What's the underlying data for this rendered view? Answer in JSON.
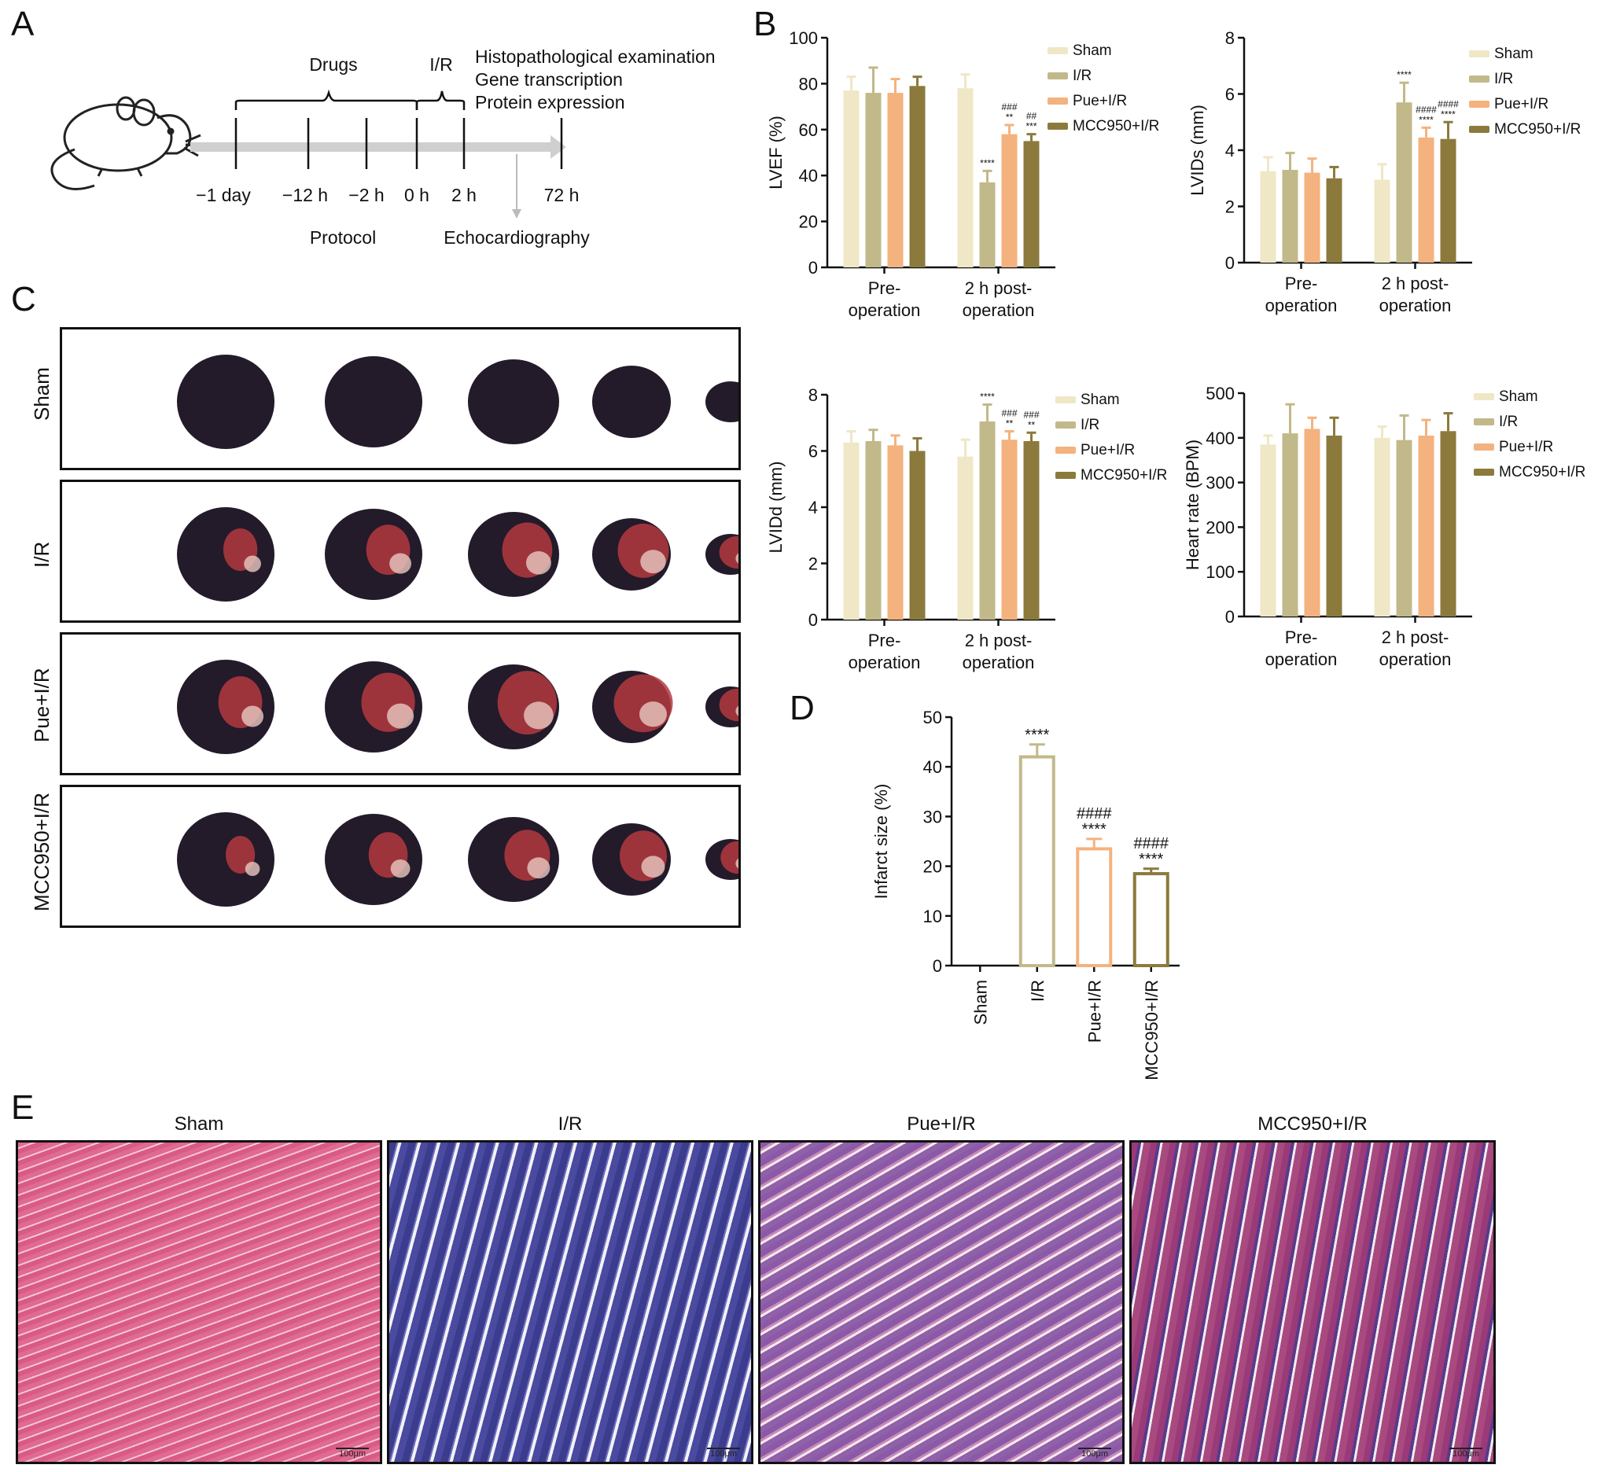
{
  "panels": {
    "a": "A",
    "b": "B",
    "c": "C",
    "d": "D",
    "e": "E"
  },
  "protocol": {
    "drugs_label": "Drugs",
    "ir_label": "I/R",
    "outcomes": [
      "Histopathological examination",
      "Gene transcription",
      "Protein expression"
    ],
    "timepoints": [
      "−1 day",
      "−12 h",
      "−2 h",
      "0 h",
      "2 h",
      "72 h"
    ],
    "protocol_label": "Protocol",
    "echo_label": "Echocardiography",
    "mouse_icon": "mouse-icon"
  },
  "colors": {
    "sham": "#efe7c6",
    "ir": "#c2b98a",
    "pue": "#f4b27e",
    "mcc": "#8b7a3c",
    "blue_histo": "#4a4aa0",
    "pink_histo": "#d44a80"
  },
  "legend": [
    "Sham",
    "I/R",
    "Pue+I/R",
    "MCC950+I/R"
  ],
  "chart_data": [
    {
      "id": "lvef",
      "type": "bar",
      "ylabel": "LVEF (%)",
      "ylim": [
        0,
        100
      ],
      "yticks": [
        0,
        20,
        40,
        60,
        80,
        100
      ],
      "groups": [
        [
          "Pre-",
          "operation"
        ],
        [
          "2 h post-",
          "operation"
        ]
      ],
      "series": [
        {
          "name": "Sham",
          "values": [
            77,
            78
          ],
          "errors": [
            6,
            6
          ],
          "marks": [
            "",
            ""
          ]
        },
        {
          "name": "I/R",
          "values": [
            76,
            37
          ],
          "errors": [
            11,
            5
          ],
          "marks": [
            "",
            "****"
          ]
        },
        {
          "name": "Pue+I/R",
          "values": [
            76,
            58
          ],
          "errors": [
            6,
            4
          ],
          "marks": [
            "",
            "###|**"
          ]
        },
        {
          "name": "MCC950+I/R",
          "values": [
            79,
            55
          ],
          "errors": [
            4,
            3
          ],
          "marks": [
            "",
            "##|***"
          ]
        }
      ],
      "legend_position": "top-right"
    },
    {
      "id": "lvids",
      "type": "bar",
      "ylabel": "LVIDs (mm)",
      "ylim": [
        0,
        8
      ],
      "yticks": [
        0,
        2,
        4,
        6,
        8
      ],
      "groups": [
        [
          "Pre-",
          "operation"
        ],
        [
          "2 h post-",
          "operation"
        ]
      ],
      "series": [
        {
          "name": "Sham",
          "values": [
            3.25,
            2.95
          ],
          "errors": [
            0.5,
            0.55
          ],
          "marks": [
            "",
            ""
          ]
        },
        {
          "name": "I/R",
          "values": [
            3.3,
            5.7
          ],
          "errors": [
            0.6,
            0.7
          ],
          "marks": [
            "",
            "****"
          ]
        },
        {
          "name": "Pue+I/R",
          "values": [
            3.2,
            4.45
          ],
          "errors": [
            0.5,
            0.35
          ],
          "marks": [
            "",
            "####|****"
          ]
        },
        {
          "name": "MCC950+I/R",
          "values": [
            3.0,
            4.4
          ],
          "errors": [
            0.4,
            0.6
          ],
          "marks": [
            "",
            "####|****"
          ]
        }
      ],
      "legend_position": "top-right"
    },
    {
      "id": "lvidd",
      "type": "bar",
      "ylabel": "LVIDd (mm)",
      "ylim": [
        0,
        8
      ],
      "yticks": [
        0,
        2,
        4,
        6,
        8
      ],
      "groups": [
        [
          "Pre-",
          "operation"
        ],
        [
          "2 h post-",
          "operation"
        ]
      ],
      "series": [
        {
          "name": "Sham",
          "values": [
            6.3,
            5.8
          ],
          "errors": [
            0.4,
            0.6
          ],
          "marks": [
            "",
            ""
          ]
        },
        {
          "name": "I/R",
          "values": [
            6.35,
            7.05
          ],
          "errors": [
            0.4,
            0.6
          ],
          "marks": [
            "",
            "****"
          ]
        },
        {
          "name": "Pue+I/R",
          "values": [
            6.2,
            6.4
          ],
          "errors": [
            0.35,
            0.3
          ],
          "marks": [
            "",
            "###|**"
          ]
        },
        {
          "name": "MCC950+I/R",
          "values": [
            6.0,
            6.35
          ],
          "errors": [
            0.45,
            0.3
          ],
          "marks": [
            "",
            "###|**"
          ]
        }
      ],
      "legend_position": "top-right"
    },
    {
      "id": "hr",
      "type": "bar",
      "ylabel": "Heart rate (BPM)",
      "ylim": [
        0,
        500
      ],
      "yticks": [
        0,
        100,
        200,
        300,
        400,
        500
      ],
      "groups": [
        [
          "Pre-",
          "operation"
        ],
        [
          "2 h post-",
          "operation"
        ]
      ],
      "series": [
        {
          "name": "Sham",
          "values": [
            385,
            400
          ],
          "errors": [
            20,
            25
          ],
          "marks": [
            "",
            ""
          ]
        },
        {
          "name": "I/R",
          "values": [
            410,
            395
          ],
          "errors": [
            65,
            55
          ],
          "marks": [
            "",
            ""
          ]
        },
        {
          "name": "Pue+I/R",
          "values": [
            420,
            405
          ],
          "errors": [
            25,
            35
          ],
          "marks": [
            "",
            ""
          ]
        },
        {
          "name": "MCC950+I/R",
          "values": [
            405,
            415
          ],
          "errors": [
            40,
            40
          ],
          "marks": [
            "",
            ""
          ]
        }
      ],
      "legend_position": "top-right"
    },
    {
      "id": "infarct",
      "type": "bar",
      "ylabel": "Infarct size (%)",
      "ylim": [
        0,
        50
      ],
      "yticks": [
        0,
        10,
        20,
        30,
        40,
        50
      ],
      "categories": [
        "Sham",
        "I/R",
        "Pue+I/R",
        "MCC950+I/R"
      ],
      "values": [
        0,
        42,
        23.5,
        18.5
      ],
      "errors": [
        0,
        2.5,
        2,
        1
      ],
      "marks": [
        "",
        "****",
        "####|****",
        "####|****"
      ]
    }
  ],
  "ttc": {
    "rows": [
      "Sham",
      "I/R",
      "Pue+I/R",
      "MCC950+I/R"
    ]
  },
  "histology": {
    "titles": [
      "Sham",
      "I/R",
      "Pue+I/R",
      "MCC950+I/R"
    ],
    "scale": "100μm"
  }
}
